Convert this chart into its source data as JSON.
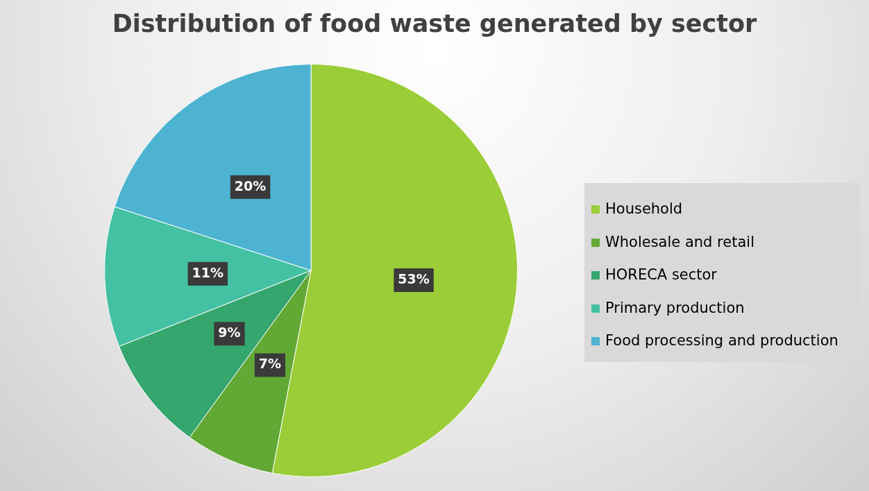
{
  "chart_data": {
    "type": "pie",
    "title": "Distribution of food waste generated by sector",
    "categories": [
      "Household",
      "Wholesale and retail",
      "HORECA sector",
      "Primary production",
      "Food processing and production"
    ],
    "values": [
      53,
      7,
      9,
      11,
      20
    ],
    "value_labels": [
      "53%",
      "7%",
      "9%",
      "11%",
      "20%"
    ],
    "colors": [
      "#9acd38",
      "#62a834",
      "#35a66e",
      "#44c1a2",
      "#4db3d1"
    ],
    "legend": "right"
  }
}
